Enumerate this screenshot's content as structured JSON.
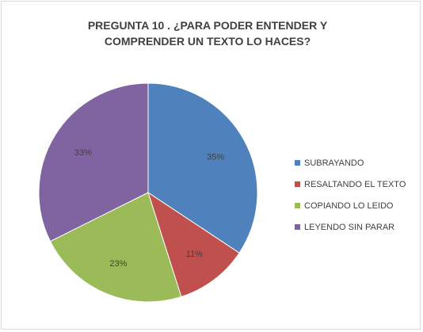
{
  "chart_data": {
    "type": "pie",
    "title_line1": "PREGUNTA 10 . ¿PARA PODER ENTENDER Y",
    "title_line2": "COMPRENDER UN TEXTO LO HACES?",
    "categories": [
      "SUBRAYANDO",
      "RESALTANDO EL TEXTO",
      "COPIANDO LO LEIDO",
      "LEYENDO SIN PARAR"
    ],
    "values": [
      35,
      11,
      23,
      33
    ],
    "data_labels": [
      "35%",
      "11%",
      "23%",
      "33%"
    ],
    "colors": [
      "#4f81bd",
      "#c0504d",
      "#9bbb59",
      "#8064a2"
    ],
    "legend_position": "right"
  }
}
